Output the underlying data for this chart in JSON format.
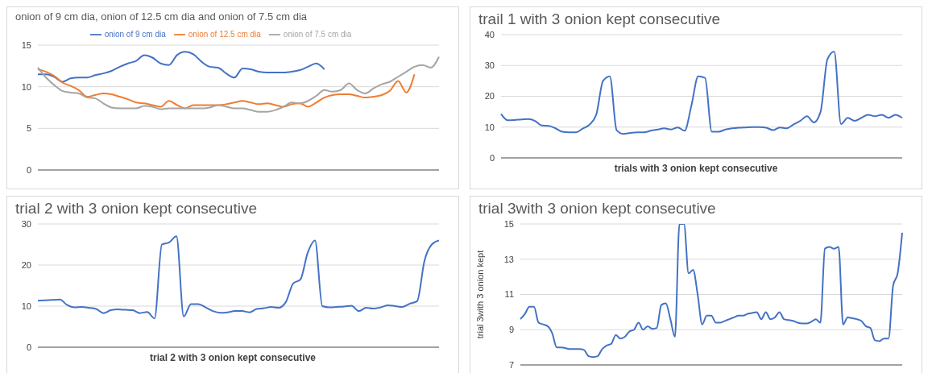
{
  "chart_data": [
    {
      "type": "line",
      "title": "onion of  9 cm dia, onion of 12.5 cm dia and onion of 7.5 cm dia",
      "categories": [
        null,
        null,
        null,
        null,
        null,
        null,
        null,
        null,
        null,
        null,
        null,
        null,
        null,
        null,
        null,
        null,
        null,
        null,
        null,
        null,
        null,
        null,
        null,
        null,
        null,
        null,
        null,
        null,
        null,
        null,
        null,
        null,
        null,
        null,
        null,
        null,
        null,
        null,
        null,
        null,
        null,
        null,
        null,
        null,
        null,
        null,
        null,
        null,
        null,
        null
      ],
      "series": [
        {
          "name": "onion of  9 cm dia",
          "color": "#4472c4",
          "values": [
            11.5,
            11.5,
            11.2,
            10.6,
            11.0,
            11.1,
            11.1,
            11.4,
            11.6,
            11.9,
            12.4,
            12.8,
            13.1,
            13.8,
            13.5,
            12.8,
            12.6,
            13.8,
            14.2,
            13.9,
            13.0,
            12.4,
            12.3,
            11.6,
            11.1,
            12.2,
            12.1,
            11.8,
            11.7,
            11.7,
            11.7,
            11.8,
            12.0,
            12.4,
            12.8,
            12.1,
            null,
            null,
            null,
            null,
            null,
            null,
            null,
            null,
            null,
            null,
            null,
            null,
            null,
            null
          ]
        },
        {
          "name": "onion of 12.5 cm dia",
          "color": "#ed7d31",
          "values": [
            12.1,
            11.8,
            11.3,
            10.5,
            10.1,
            9.6,
            8.8,
            9.0,
            9.2,
            9.1,
            8.8,
            8.5,
            8.1,
            8.0,
            7.8,
            7.6,
            8.3,
            7.8,
            7.4,
            7.8,
            7.8,
            7.8,
            7.8,
            7.9,
            8.1,
            8.3,
            8.1,
            7.9,
            8.0,
            7.8,
            7.6,
            7.9,
            8.0,
            7.6,
            8.1,
            8.7,
            9.0,
            9.1,
            9.1,
            8.9,
            8.7,
            8.8,
            9.0,
            9.5,
            10.7,
            9.3,
            11.5,
            null,
            null,
            null
          ]
        },
        {
          "name": "onion of 7.5 cm dia",
          "color": "#a5a5a5",
          "values": [
            12.3,
            11.1,
            10.2,
            9.5,
            9.3,
            9.2,
            8.7,
            8.6,
            8.0,
            7.5,
            7.4,
            7.4,
            7.4,
            7.7,
            7.6,
            7.3,
            7.4,
            7.4,
            7.4,
            7.4,
            7.4,
            7.5,
            7.8,
            7.6,
            7.4,
            7.4,
            7.2,
            7.0,
            7.0,
            7.2,
            7.6,
            8.1,
            8.0,
            8.3,
            8.9,
            9.6,
            9.4,
            9.6,
            10.4,
            9.6,
            9.2,
            9.8,
            10.3,
            10.6,
            11.2,
            11.8,
            12.4,
            12.6,
            12.3,
            13.6
          ]
        }
      ],
      "ylim": [
        0,
        15
      ],
      "yticks": [
        0,
        5,
        10,
        15
      ],
      "grid": "y",
      "legend": "top",
      "tick_labels": "y"
    },
    {
      "type": "line",
      "title": "trail 1 with 3 onion kept consecutive",
      "xlabel": "trials with 3 onion kept consecutive",
      "categories": [
        null,
        null,
        null,
        null,
        null,
        null,
        null,
        null,
        null,
        null,
        null,
        null,
        null,
        null,
        null,
        null,
        null,
        null,
        null,
        null,
        null,
        null,
        null,
        null,
        null,
        null,
        null,
        null,
        null,
        null,
        null,
        null,
        null,
        null,
        null,
        null,
        null,
        null,
        null,
        null,
        null,
        null,
        null,
        null,
        null,
        null,
        null,
        null,
        null,
        null,
        null,
        null,
        null,
        null,
        null,
        null,
        null,
        null,
        null,
        null
      ],
      "series": [
        {
          "color": "#4472c4",
          "values": [
            14.3,
            12.2,
            12.3,
            12.5,
            12.6,
            12.0,
            10.5,
            10.4,
            9.6,
            8.5,
            8.3,
            8.3,
            9.5,
            10.8,
            14.0,
            25.0,
            26.5,
            9.0,
            7.8,
            8.1,
            8.3,
            8.3,
            8.8,
            9.2,
            9.6,
            9.2,
            9.9,
            8.8,
            17.0,
            26.5,
            26.0,
            8.5,
            8.5,
            9.2,
            9.6,
            9.8,
            9.9,
            10.0,
            10.0,
            9.8,
            9.0,
            9.9,
            9.6,
            10.8,
            12.0,
            13.5,
            11.5,
            15.0,
            32.0,
            34.5,
            11.0,
            13.0,
            12.0,
            13.0,
            14.0,
            13.5,
            14.0,
            13.0,
            14.0,
            13.0
          ]
        }
      ],
      "ylim": [
        0,
        40
      ],
      "yticks": [
        0,
        10,
        20,
        30,
        40
      ],
      "grid": "y",
      "tick_labels": "y"
    },
    {
      "type": "line",
      "title": "trial 2 with 3 onion kept consecutive",
      "xlabel": "trial 2 with 3 onion kept consecutive",
      "categories": [
        null,
        null,
        null,
        null,
        null,
        null,
        null,
        null,
        null,
        null,
        null,
        null,
        null,
        null,
        null,
        null,
        null,
        null,
        null,
        null,
        null,
        null,
        null,
        null,
        null,
        null,
        null,
        null,
        null,
        null,
        null,
        null,
        null,
        null,
        null,
        null,
        null,
        null,
        null,
        null,
        null,
        null,
        null,
        null,
        null,
        null,
        null,
        null,
        null,
        null,
        null,
        null,
        null,
        null,
        null,
        null
      ],
      "series": [
        {
          "color": "#4472c4",
          "values": [
            11.3,
            11.4,
            11.5,
            11.6,
            10.3,
            9.7,
            9.8,
            9.6,
            9.3,
            8.3,
            9.0,
            9.2,
            9.1,
            9.0,
            8.3,
            8.6,
            7.0,
            25.0,
            25.5,
            27.0,
            7.5,
            10.5,
            10.5,
            9.7,
            8.8,
            8.4,
            8.5,
            8.8,
            8.8,
            8.5,
            9.3,
            9.5,
            9.8,
            9.6,
            11.0,
            15.5,
            16.5,
            23.0,
            26.0,
            10.0,
            9.7,
            9.8,
            9.9,
            10.1,
            8.8,
            9.6,
            9.4,
            9.7,
            10.2,
            10.0,
            9.8,
            10.6,
            11.2,
            21.0,
            25.0,
            26.0
          ]
        }
      ],
      "ylim": [
        0,
        30
      ],
      "yticks": [
        0,
        10,
        20,
        30
      ],
      "grid": "y",
      "tick_labels": "y"
    },
    {
      "type": "line",
      "title": "trial 3with 3 onion kept consecutive",
      "ylabel": "trial 3with 3 onion kept",
      "categories": [
        null,
        null,
        null,
        null,
        null,
        null,
        null,
        null,
        null,
        null,
        null,
        null,
        null,
        null,
        null,
        null,
        null,
        null,
        null,
        null,
        null,
        null,
        null,
        null,
        null,
        null,
        null,
        null,
        null,
        null,
        null,
        null,
        null,
        null,
        null,
        null,
        null,
        null,
        null,
        null,
        null,
        null,
        null,
        null,
        null,
        null,
        null,
        null,
        null,
        null,
        null,
        null,
        null,
        null,
        null,
        null,
        null,
        null,
        null,
        null,
        null,
        null,
        null,
        null,
        null,
        null,
        null,
        null,
        null,
        null,
        null,
        null,
        null,
        null,
        null,
        null,
        null,
        null,
        null,
        null,
        null,
        null,
        null,
        null,
        null
      ],
      "series": [
        {
          "color": "#4472c4",
          "values": [
            9.6,
            9.9,
            10.3,
            10.3,
            9.4,
            9.3,
            9.2,
            8.8,
            8.0,
            8.0,
            7.95,
            7.9,
            7.9,
            7.9,
            7.85,
            7.5,
            7.45,
            7.5,
            7.9,
            8.1,
            8.2,
            8.7,
            8.5,
            8.6,
            8.9,
            9.0,
            9.4,
            9.0,
            9.2,
            9.05,
            9.1,
            10.4,
            10.5,
            9.6,
            8.6,
            15,
            15,
            12.2,
            12.4,
            11.0,
            9.3,
            9.8,
            9.8,
            9.4,
            9.4,
            9.5,
            9.6,
            9.7,
            9.8,
            9.8,
            9.9,
            9.95,
            10.0,
            9.6,
            10.0,
            9.6,
            9.7,
            10.0,
            9.6,
            9.55,
            9.5,
            9.4,
            9.35,
            9.35,
            9.45,
            9.6,
            9.4,
            13.6,
            13.7,
            13.6,
            13.7,
            9.3,
            9.7,
            9.65,
            9.6,
            9.5,
            9.2,
            9.1,
            8.4,
            8.35,
            8.5,
            8.5,
            11.5,
            12.2,
            14.5
          ]
        }
      ],
      "ylim": [
        7,
        15
      ],
      "yticks": [
        7,
        9,
        11,
        13,
        15
      ],
      "grid": "y",
      "tick_labels": "y"
    }
  ]
}
